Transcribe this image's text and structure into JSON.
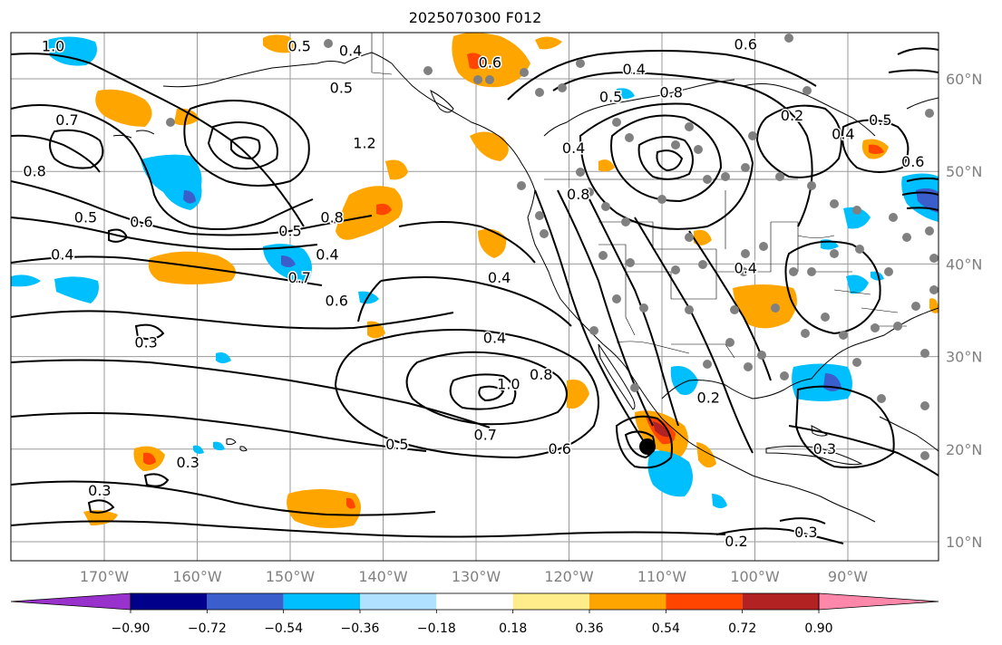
{
  "title": "2025070300 F012",
  "lat_labels": [
    "60°N",
    "50°N",
    "40°N",
    "30°N",
    "20°N",
    "10°N"
  ],
  "lat_values": [
    60,
    50,
    40,
    30,
    20,
    10
  ],
  "lon_labels": [
    "170°W",
    "160°W",
    "150°W",
    "140°W",
    "130°W",
    "120°W",
    "110°W",
    "100°W",
    "90°W"
  ],
  "lon_values": [
    -170,
    -160,
    -150,
    -140,
    -130,
    -120,
    -110,
    -100,
    -90
  ],
  "colorbar": {
    "tick_labels": [
      "−0.90",
      "−0.72",
      "−0.54",
      "−0.36",
      "−0.18",
      "0.18",
      "0.36",
      "0.54",
      "0.72",
      "0.90"
    ],
    "colors": [
      "#9932cc",
      "#00008b",
      "#3a5fcd",
      "#00bfff",
      "#b0e2ff",
      "#ffffff",
      "#ffec8b",
      "#ffa500",
      "#ff4500",
      "#b22222",
      "#ff88aa"
    ]
  },
  "contour_labels": [
    {
      "text": "1.0",
      "lon": -175.5,
      "lat": 63.0
    },
    {
      "text": "0.5",
      "lon": -149.0,
      "lat": 63.0
    },
    {
      "text": "0.4",
      "lon": -143.5,
      "lat": 62.5
    },
    {
      "text": "0.6",
      "lon": -128.5,
      "lat": 61.2
    },
    {
      "text": "0.5",
      "lon": -144.5,
      "lat": 58.5
    },
    {
      "text": "0.7",
      "lon": -174.0,
      "lat": 55.0
    },
    {
      "text": "1.2",
      "lon": -142.0,
      "lat": 52.5
    },
    {
      "text": "0.8",
      "lon": -177.5,
      "lat": 49.5
    },
    {
      "text": "0.5",
      "lon": -172.0,
      "lat": 44.5
    },
    {
      "text": "0.6",
      "lon": -166.0,
      "lat": 44.0
    },
    {
      "text": "0.8",
      "lon": -145.5,
      "lat": 44.5
    },
    {
      "text": "0.5",
      "lon": -150.0,
      "lat": 43.0
    },
    {
      "text": "0.4",
      "lon": -174.5,
      "lat": 40.5
    },
    {
      "text": "0.4",
      "lon": -146.0,
      "lat": 40.5
    },
    {
      "text": "0.7",
      "lon": -149.0,
      "lat": 38.0
    },
    {
      "text": "0.6",
      "lon": -145.0,
      "lat": 35.5
    },
    {
      "text": "0.3",
      "lon": -165.5,
      "lat": 31.0
    },
    {
      "text": "0.4",
      "lon": -127.5,
      "lat": 38.0
    },
    {
      "text": "0.4",
      "lon": -128.0,
      "lat": 31.5
    },
    {
      "text": "1.0",
      "lon": -126.5,
      "lat": 26.5
    },
    {
      "text": "0.8",
      "lon": -123.0,
      "lat": 27.5
    },
    {
      "text": "0.7",
      "lon": -129.0,
      "lat": 21.0
    },
    {
      "text": "0.5",
      "lon": -138.5,
      "lat": 20.0
    },
    {
      "text": "0.6",
      "lon": -121.0,
      "lat": 19.5
    },
    {
      "text": "0.3",
      "lon": -161.0,
      "lat": 18.0
    },
    {
      "text": "0.3",
      "lon": -170.5,
      "lat": 15.0
    },
    {
      "text": "0.4",
      "lon": -119.5,
      "lat": 52.0
    },
    {
      "text": "0.8",
      "lon": -119.0,
      "lat": 47.0
    },
    {
      "text": "0.5",
      "lon": -115.5,
      "lat": 57.5
    },
    {
      "text": "0.4",
      "lon": -113.0,
      "lat": 60.5
    },
    {
      "text": "0.8",
      "lon": -109.0,
      "lat": 58.0
    },
    {
      "text": "0.6",
      "lon": -101.0,
      "lat": 63.2
    },
    {
      "text": "0.2",
      "lon": -96.0,
      "lat": 55.5
    },
    {
      "text": "0.4",
      "lon": -90.5,
      "lat": 53.5
    },
    {
      "text": "0.5",
      "lon": -86.5,
      "lat": 55.0
    },
    {
      "text": "0.6",
      "lon": -83.0,
      "lat": 50.5
    },
    {
      "text": "0.2",
      "lon": -105.0,
      "lat": 25.0
    },
    {
      "text": "0.3",
      "lon": -92.5,
      "lat": 19.5
    },
    {
      "text": "0.2",
      "lon": -102.0,
      "lat": 9.5
    },
    {
      "text": "0.3",
      "lon": -94.5,
      "lat": 10.5
    },
    {
      "text": "0.4",
      "lon": -101.0,
      "lat": 39.0
    }
  ]
}
